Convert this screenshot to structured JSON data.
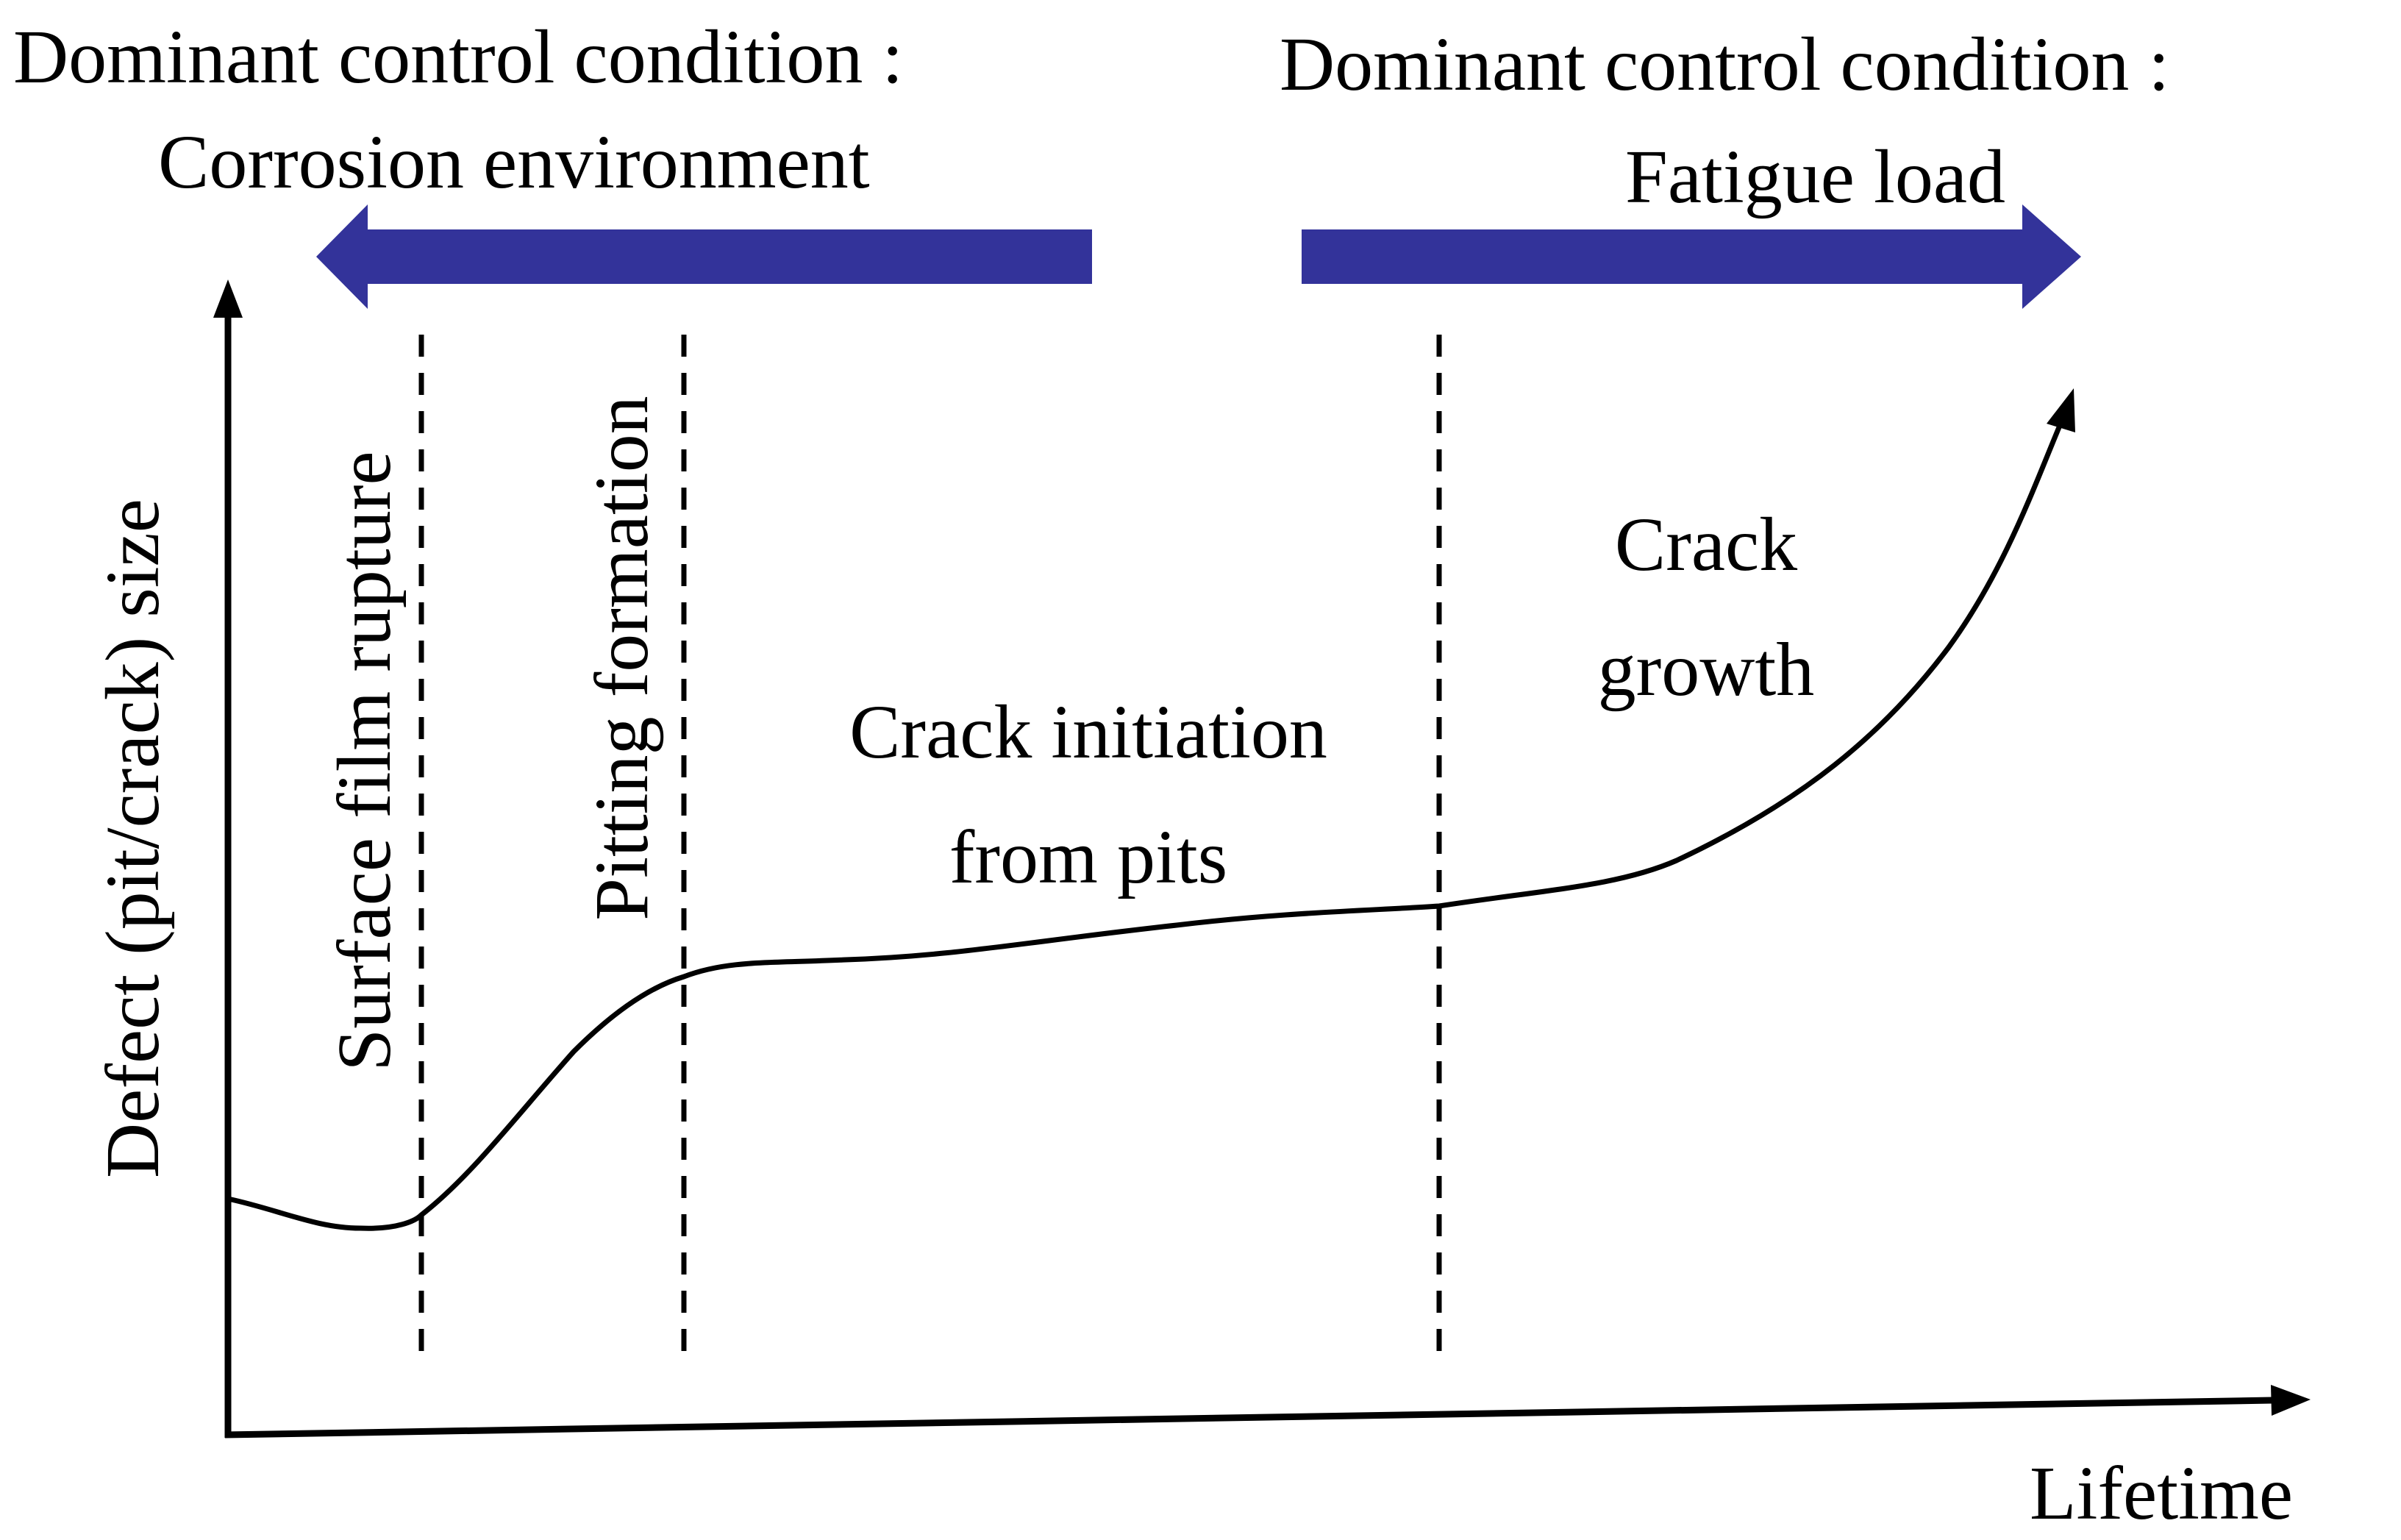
{
  "header": {
    "left": {
      "line1": "Dominant control condition :",
      "line2": "Corrosion environment"
    },
    "right": {
      "line1": "Dominant control condition :",
      "line2": "Fatigue load"
    }
  },
  "axes": {
    "y_label": "Defect (pit/crack) size",
    "x_label": "Lifetime"
  },
  "stages": {
    "surface_film_rupture": "Surface film rupture",
    "pitting_formation": "Pitting formation",
    "crack_initiation": {
      "line1": "Crack initiation",
      "line2": "from pits"
    },
    "crack_growth": {
      "line1": "Crack",
      "line2": "growth"
    }
  },
  "colors": {
    "arrow": "#33339a",
    "line": "#000000",
    "background": "#ffffff"
  }
}
